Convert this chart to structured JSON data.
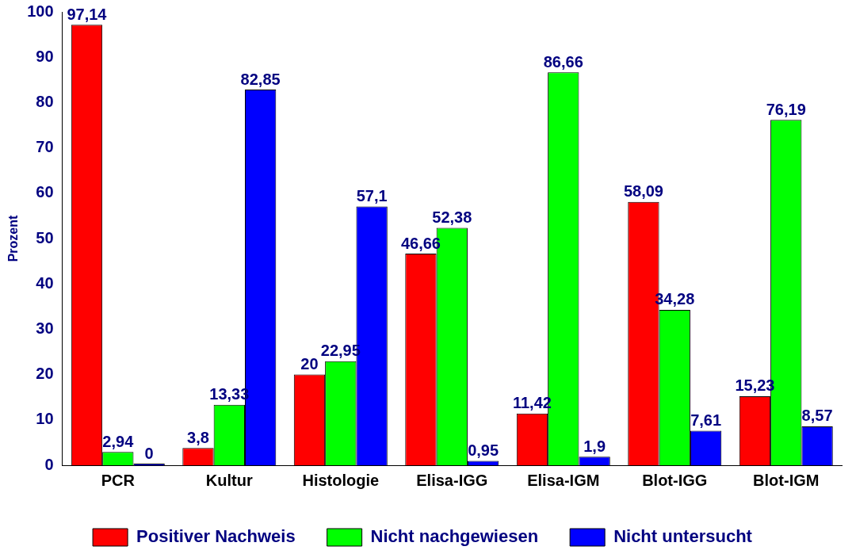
{
  "chart_data": {
    "type": "bar",
    "ylabel": "Prozent",
    "categories": [
      "PCR",
      "Kultur",
      "Histologie",
      "Elisa-IGG",
      "Elisa-IGM",
      "Blot-IGG",
      "Blot-IGM"
    ],
    "series": [
      {
        "name": "Positiver Nachweis",
        "color": "#ff0000",
        "values": [
          97.14,
          3.8,
          20,
          46.66,
          11.42,
          58.09,
          15.23
        ],
        "value_labels": [
          "97,14",
          "3,8",
          "20",
          "46,66",
          "11,42",
          "58,09",
          "15,23"
        ]
      },
      {
        "name": "Nicht nachgewiesen",
        "color": "#00ff00",
        "values": [
          2.94,
          13.33,
          22.95,
          52.38,
          86.66,
          34.28,
          76.19
        ],
        "value_labels": [
          "2,94",
          "13,33",
          "22,95",
          "52,38",
          "86,66",
          "34,28",
          "76,19"
        ]
      },
      {
        "name": "Nicht untersucht",
        "color": "#0000ff",
        "values": [
          0,
          82.85,
          57.1,
          0.95,
          1.9,
          7.61,
          8.57
        ],
        "value_labels": [
          "0",
          "82,85",
          "57,1",
          "0,95",
          "1,9",
          "7,61",
          "8,57"
        ]
      }
    ],
    "ylim": [
      0,
      100
    ],
    "yticks": [
      0,
      10,
      20,
      30,
      40,
      50,
      60,
      70,
      80,
      90,
      100
    ],
    "legend": "bottom"
  }
}
